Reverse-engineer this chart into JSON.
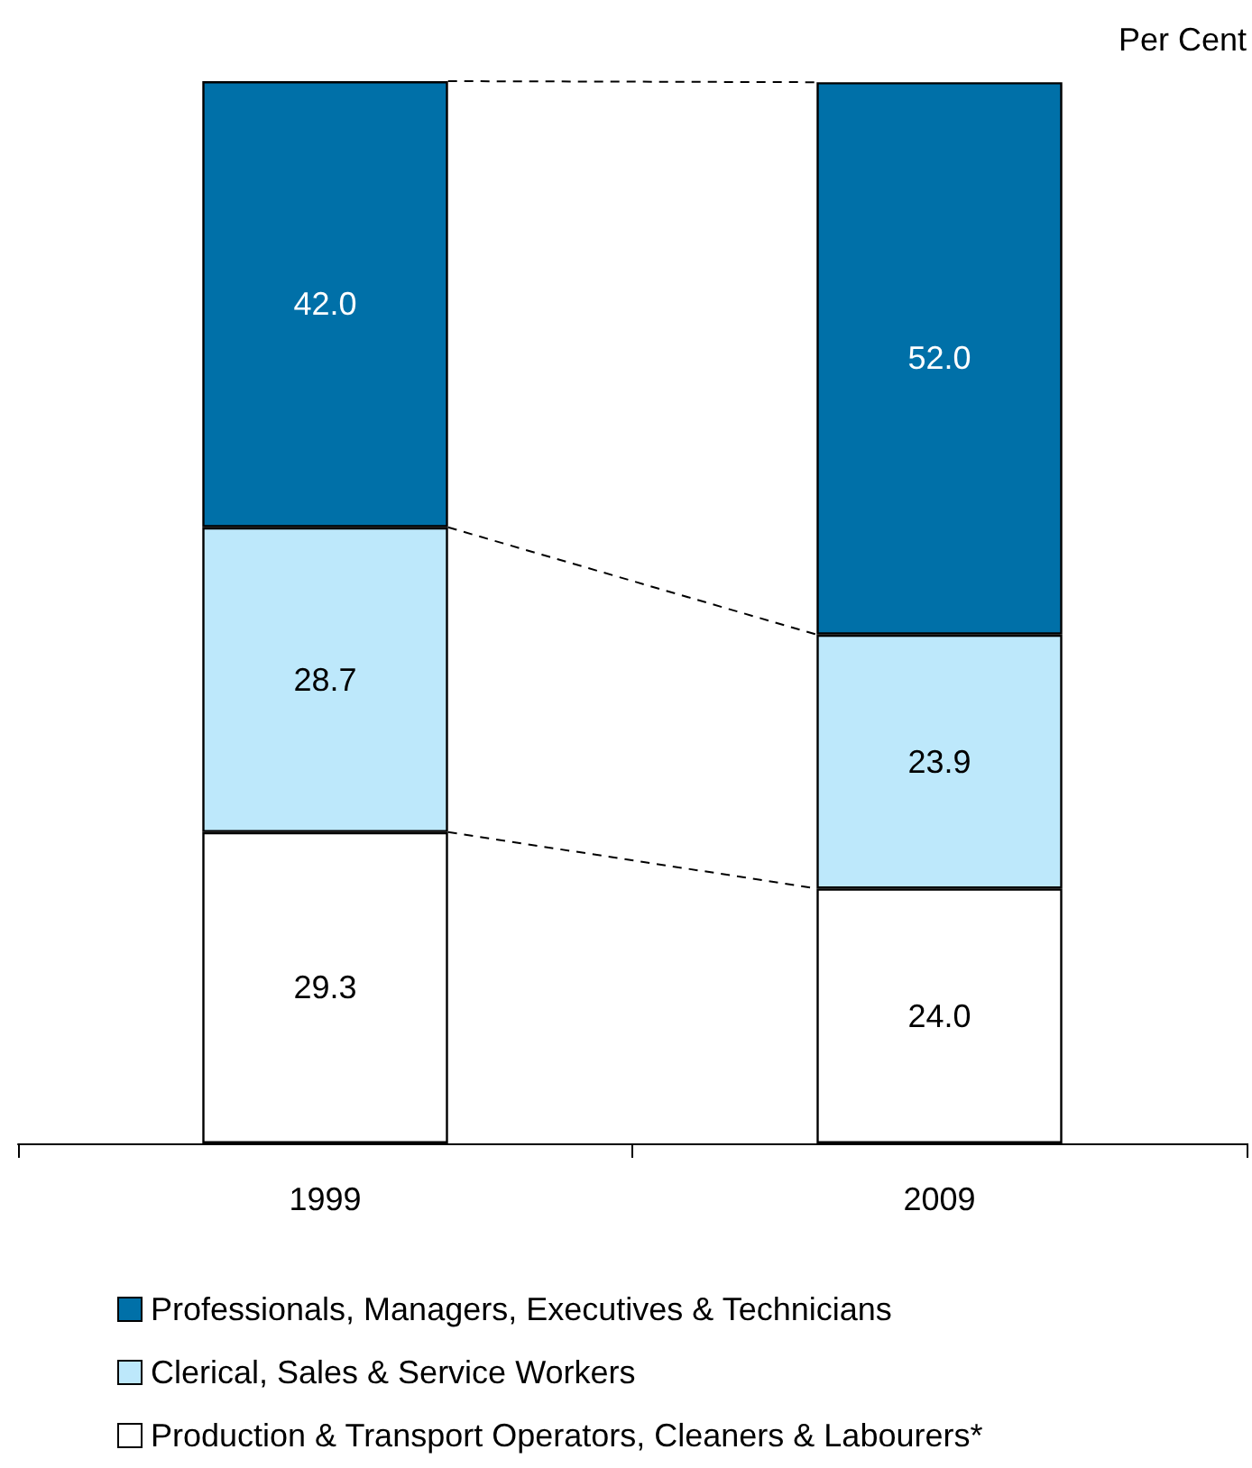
{
  "chart_data": {
    "type": "bar",
    "stacked": true,
    "ylabel": "Per Cent",
    "categories": [
      "1999",
      "2009"
    ],
    "series": [
      {
        "name": "Production & Transport Operators, Cleaners & Labourers*",
        "color": "#ffffff",
        "values": [
          29.3,
          24.0
        ],
        "value_labels": [
          "29.3",
          "24.0"
        ]
      },
      {
        "name": "Clerical, Sales & Service Workers",
        "color": "#bde8fb",
        "values": [
          28.7,
          23.9
        ],
        "value_labels": [
          "28.7",
          "23.9"
        ]
      },
      {
        "name": "Professionals, Managers, Executives & Technicians",
        "color": "#0070a8",
        "values": [
          42.0,
          52.0
        ],
        "value_labels": [
          "42.0",
          "52.0"
        ]
      }
    ],
    "legend": "bottom",
    "grid": false
  }
}
